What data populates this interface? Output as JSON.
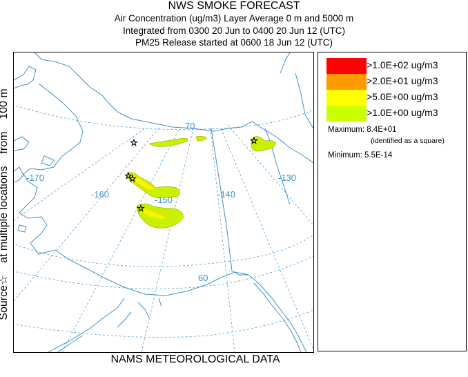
{
  "header": {
    "title": "NWS SMOKE FORECAST",
    "line1": "Air Concentration (ug/m3) Layer Average     0 m and  5000 m",
    "line2": "Integrated from 0300 20 Jun to 0400 20 Jun 12 (UTC)",
    "line3": "PM25 Release started at 0600 18 Jun 12 (UTC)"
  },
  "side_label": "Source☆    at multiple locations    from    100 m",
  "footer": "NAMS METEOROLOGICAL DATA",
  "map": {
    "longitude_labels": [
      "-170",
      "-160",
      "-150",
      "-140",
      "-130"
    ],
    "latitude_labels": [
      "70",
      "60"
    ],
    "colors": {
      "coast": "#3b8fc4",
      "grid": "#4f9ed0",
      "label": "#3a8fc9",
      "plume_outer": "#c8f000",
      "plume_mid": "#fff200"
    }
  },
  "legend": {
    "items": [
      {
        "color": "#ff0000",
        "label": ">1.0E+02 ug/m3"
      },
      {
        "color": "#ff9900",
        "label": ">2.0E+01 ug/m3"
      },
      {
        "color": "#ffff00",
        "label": ">5.0E+00 ug/m3"
      },
      {
        "color": "#ccff00",
        "label": ">1.0E+00 ug/m3"
      }
    ],
    "maximum_label": "Maximum: 8.4E+01",
    "maximum_note": "(identified as a square)",
    "minimum_label": "Minimum: 5.5E-14"
  }
}
